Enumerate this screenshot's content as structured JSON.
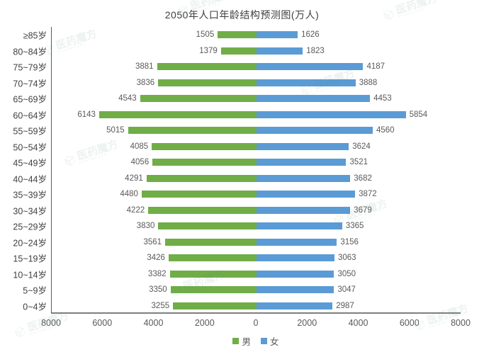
{
  "watermark": {
    "text": "医药魔方",
    "subtext": "PHARMCUBE"
  },
  "chart_data": {
    "type": "bar",
    "variant": "population-pyramid",
    "title": "2050年人口年龄结构预测图(万人)",
    "categories": [
      "≥85岁",
      "80~84岁",
      "75~79岁",
      "70~74岁",
      "65~69岁",
      "60~64岁",
      "55~59岁",
      "50~54岁",
      "45~49岁",
      "40~44岁",
      "35~39岁",
      "30~34岁",
      "25~29岁",
      "20~24岁",
      "15~19岁",
      "10~14岁",
      "5~9岁",
      "0~4岁"
    ],
    "series": [
      {
        "name": "男",
        "color": "#70AD47",
        "values": [
          1505,
          1379,
          3881,
          3836,
          4543,
          6143,
          5015,
          4085,
          4056,
          4291,
          4480,
          4222,
          3830,
          3561,
          3426,
          3382,
          3350,
          3255
        ]
      },
      {
        "name": "女",
        "color": "#5B9BD5",
        "values": [
          1626,
          1823,
          4187,
          3888,
          4453,
          5854,
          4560,
          3624,
          3521,
          3682,
          3872,
          3679,
          3365,
          3156,
          3063,
          3050,
          3047,
          2987
        ]
      }
    ],
    "x_axis": {
      "max": 8000,
      "ticks_left": [
        "8000",
        "6000",
        "4000",
        "2000"
      ],
      "center": "0",
      "ticks_right": [
        "2000",
        "4000",
        "6000",
        "8000"
      ]
    },
    "legend": [
      {
        "label": "男",
        "color": "#70AD47"
      },
      {
        "label": "女",
        "color": "#5B9BD5"
      }
    ],
    "grid": false,
    "legend_position": "bottom"
  }
}
